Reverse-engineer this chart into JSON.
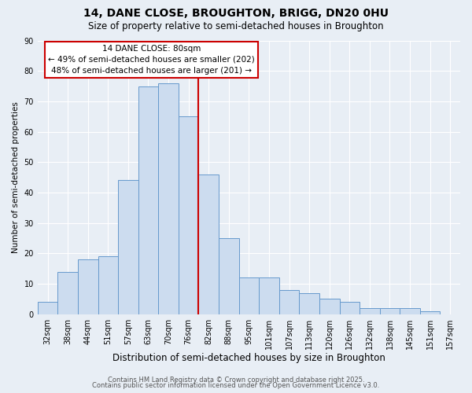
{
  "title_line1": "14, DANE CLOSE, BROUGHTON, BRIGG, DN20 0HU",
  "title_line2": "Size of property relative to semi-detached houses in Broughton",
  "xlabel": "Distribution of semi-detached houses by size in Broughton",
  "ylabel": "Number of semi-detached properties",
  "categories": [
    "32sqm",
    "38sqm",
    "44sqm",
    "51sqm",
    "57sqm",
    "63sqm",
    "70sqm",
    "76sqm",
    "82sqm",
    "88sqm",
    "95sqm",
    "101sqm",
    "107sqm",
    "113sqm",
    "120sqm",
    "126sqm",
    "132sqm",
    "138sqm",
    "145sqm",
    "151sqm",
    "157sqm"
  ],
  "values": [
    4,
    14,
    18,
    19,
    44,
    75,
    76,
    65,
    46,
    25,
    12,
    12,
    8,
    7,
    5,
    4,
    2,
    2,
    2,
    1,
    0
  ],
  "bar_color": "#ccdcef",
  "bar_edge_color": "#6699cc",
  "vline_x": 7.5,
  "annotation_title": "14 DANE CLOSE: 80sqm",
  "annotation_line2": "← 49% of semi-detached houses are smaller (202)",
  "annotation_line3": "48% of semi-detached houses are larger (201) →",
  "annotation_box_color": "#ffffff",
  "annotation_box_edge": "#cc0000",
  "vline_color": "#cc0000",
  "footer_line1": "Contains HM Land Registry data © Crown copyright and database right 2025.",
  "footer_line2": "Contains public sector information licensed under the Open Government Licence v3.0.",
  "background_color": "#e8eef5",
  "plot_background": "#e8eef5",
  "grid_color": "#ffffff",
  "ylim": [
    0,
    90
  ],
  "yticks": [
    0,
    10,
    20,
    30,
    40,
    50,
    60,
    70,
    80,
    90
  ],
  "title_fontsize": 10,
  "subtitle_fontsize": 8.5,
  "xlabel_fontsize": 8.5,
  "ylabel_fontsize": 7.5,
  "tick_fontsize": 7,
  "ann_fontsize": 7.5,
  "footer_fontsize": 6
}
